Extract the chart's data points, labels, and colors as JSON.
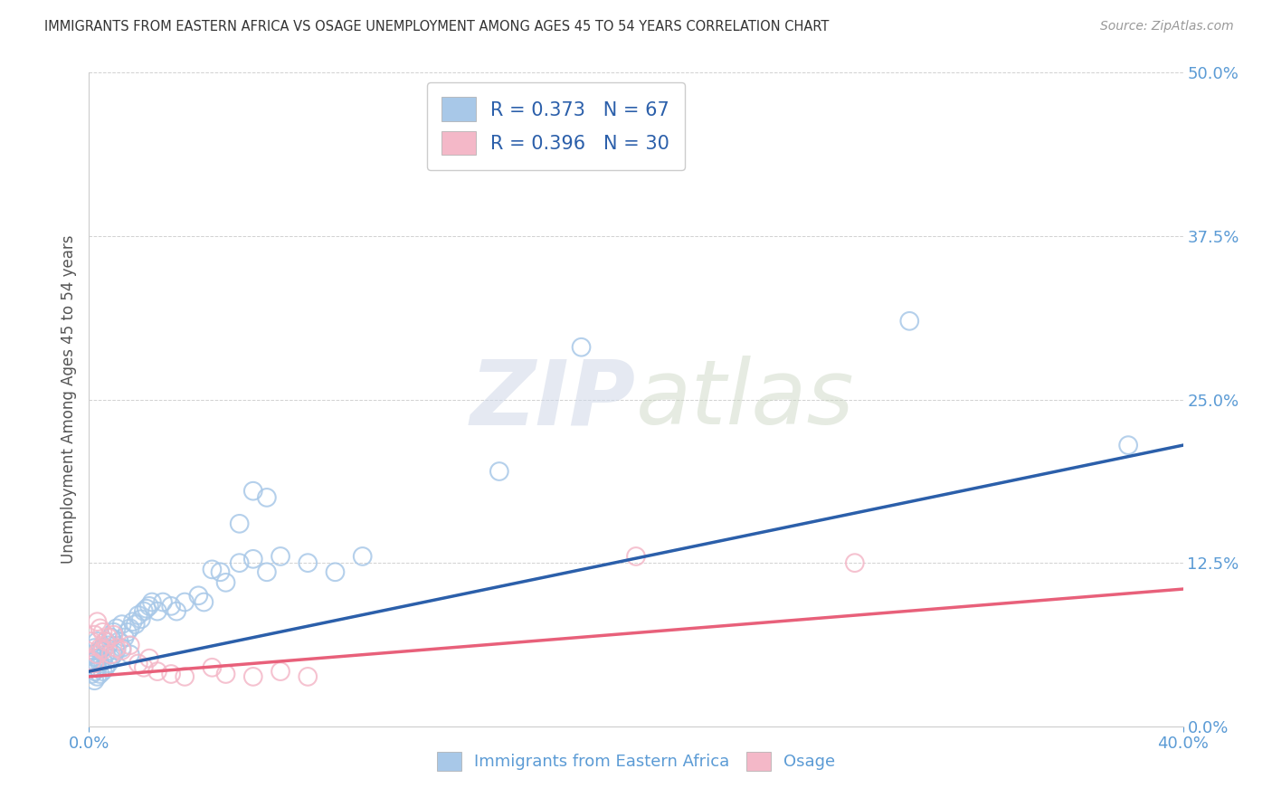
{
  "title": "IMMIGRANTS FROM EASTERN AFRICA VS OSAGE UNEMPLOYMENT AMONG AGES 45 TO 54 YEARS CORRELATION CHART",
  "source": "Source: ZipAtlas.com",
  "ylabel": "Unemployment Among Ages 45 to 54 years",
  "xlim": [
    0.0,
    0.4
  ],
  "ylim": [
    0.0,
    0.5
  ],
  "xticks": [
    0.0,
    0.4
  ],
  "yticks": [
    0.0,
    0.125,
    0.25,
    0.375,
    0.5
  ],
  "xticklabels": [
    "0.0%",
    "40.0%"
  ],
  "yticklabels": [
    "0.0%",
    "12.5%",
    "25.0%",
    "37.5%",
    "50.0%"
  ],
  "blue_scatter_color": "#a8c8e8",
  "pink_scatter_color": "#f4b8c8",
  "blue_line_color": "#2b5faa",
  "pink_line_color": "#e8607a",
  "R_blue": 0.373,
  "N_blue": 67,
  "R_pink": 0.396,
  "N_pink": 30,
  "legend_label_blue": "Immigrants from Eastern Africa",
  "legend_label_pink": "Osage",
  "watermark_zip": "ZIP",
  "watermark_atlas": "atlas",
  "bg_color": "#ffffff",
  "grid_color": "#cccccc",
  "title_color": "#333333",
  "axis_label_color": "#555555",
  "tick_color": "#5b9bd5",
  "blue_scatter_x": [
    0.001,
    0.001,
    0.001,
    0.002,
    0.002,
    0.002,
    0.002,
    0.003,
    0.003,
    0.003,
    0.003,
    0.004,
    0.004,
    0.004,
    0.005,
    0.005,
    0.005,
    0.006,
    0.006,
    0.006,
    0.007,
    0.007,
    0.008,
    0.008,
    0.009,
    0.009,
    0.01,
    0.01,
    0.011,
    0.012,
    0.012,
    0.013,
    0.014,
    0.015,
    0.015,
    0.016,
    0.017,
    0.018,
    0.019,
    0.02,
    0.021,
    0.022,
    0.023,
    0.025,
    0.027,
    0.03,
    0.032,
    0.035,
    0.04,
    0.042,
    0.045,
    0.048,
    0.05,
    0.055,
    0.06,
    0.065,
    0.07,
    0.08,
    0.09,
    0.1,
    0.055,
    0.06,
    0.065,
    0.15,
    0.18,
    0.3,
    0.38
  ],
  "blue_scatter_y": [
    0.04,
    0.045,
    0.055,
    0.035,
    0.042,
    0.05,
    0.06,
    0.038,
    0.045,
    0.052,
    0.065,
    0.04,
    0.048,
    0.058,
    0.042,
    0.05,
    0.06,
    0.045,
    0.055,
    0.065,
    0.048,
    0.062,
    0.052,
    0.068,
    0.055,
    0.072,
    0.058,
    0.075,
    0.065,
    0.06,
    0.078,
    0.068,
    0.072,
    0.075,
    0.055,
    0.08,
    0.078,
    0.085,
    0.082,
    0.088,
    0.09,
    0.092,
    0.095,
    0.088,
    0.095,
    0.092,
    0.088,
    0.095,
    0.1,
    0.095,
    0.12,
    0.118,
    0.11,
    0.125,
    0.128,
    0.118,
    0.13,
    0.125,
    0.118,
    0.13,
    0.155,
    0.18,
    0.175,
    0.195,
    0.29,
    0.31,
    0.215
  ],
  "pink_scatter_x": [
    0.001,
    0.001,
    0.002,
    0.002,
    0.003,
    0.003,
    0.004,
    0.004,
    0.005,
    0.005,
    0.006,
    0.007,
    0.008,
    0.009,
    0.01,
    0.012,
    0.015,
    0.018,
    0.02,
    0.022,
    0.025,
    0.03,
    0.035,
    0.045,
    0.05,
    0.06,
    0.07,
    0.08,
    0.2,
    0.28
  ],
  "pink_scatter_y": [
    0.05,
    0.065,
    0.048,
    0.07,
    0.055,
    0.08,
    0.06,
    0.075,
    0.058,
    0.072,
    0.065,
    0.068,
    0.055,
    0.07,
    0.06,
    0.058,
    0.062,
    0.048,
    0.045,
    0.052,
    0.042,
    0.04,
    0.038,
    0.045,
    0.04,
    0.038,
    0.042,
    0.038,
    0.13,
    0.125
  ],
  "blue_trendline_x0": 0.0,
  "blue_trendline_y0": 0.042,
  "blue_trendline_x1": 0.4,
  "blue_trendline_y1": 0.215,
  "pink_trendline_x0": 0.0,
  "pink_trendline_y0": 0.038,
  "pink_trendline_x1": 0.4,
  "pink_trendline_y1": 0.105
}
